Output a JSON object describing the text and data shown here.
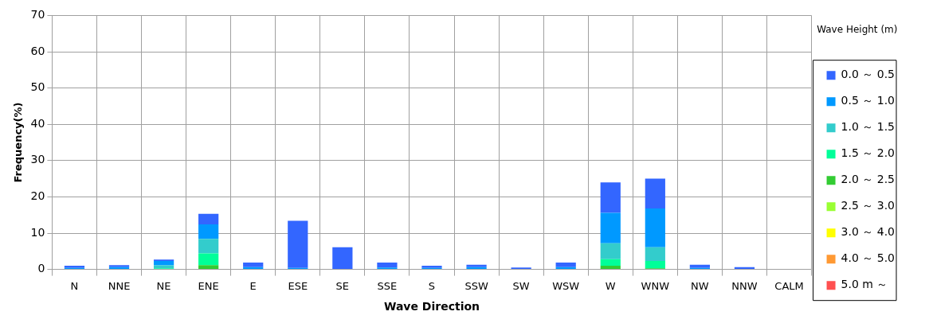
{
  "chart_data": {
    "type": "bar",
    "stacked": true,
    "xlabel": "Wave Direction",
    "ylabel": "Frequency(%)",
    "legend_title": "Wave Height (m)",
    "legend": "right",
    "grid": true,
    "categories": [
      "N",
      "NNE",
      "NE",
      "ENE",
      "E",
      "ESE",
      "SE",
      "SSE",
      "S",
      "SSW",
      "SW",
      "WSW",
      "W",
      "WNW",
      "NW",
      "NNW",
      "CALM"
    ],
    "ylim": [
      0,
      70
    ],
    "yticks": [
      0,
      10,
      20,
      30,
      40,
      50,
      60,
      70
    ],
    "series": [
      {
        "name": "2.0 ～ 2.5",
        "color": "#33cc33",
        "values": [
          0,
          0,
          0,
          1.2,
          0,
          0,
          0,
          0,
          0,
          0,
          0,
          0,
          1.0,
          0.3,
          0,
          0,
          0
        ]
      },
      {
        "name": "1.5 ～ 2.0",
        "color": "#00ff99",
        "values": [
          0,
          0,
          0.3,
          3.2,
          0,
          0,
          0,
          0,
          0,
          0,
          0,
          0,
          1.8,
          2.0,
          0,
          0,
          0
        ]
      },
      {
        "name": "1.0 ～ 1.5",
        "color": "#33cccc",
        "values": [
          0,
          null,
          0.8,
          4.0,
          0,
          0,
          0,
          0,
          0,
          0,
          0,
          0,
          4.4,
          3.8,
          0,
          0,
          0
        ]
      },
      {
        "name": "0.5 ～ 1.0",
        "color": "#0099ff",
        "values": [
          0.4,
          0.6,
          1.2,
          4.0,
          0.6,
          0.4,
          null,
          0.5,
          0.4,
          0.6,
          null,
          0.6,
          8.4,
          10.7,
          0.4,
          null,
          0
        ]
      },
      {
        "name": "0.0 ～ 0.5",
        "color": "#3366ff",
        "values": [
          0.6,
          0.6,
          0.4,
          2.9,
          1.3,
          13.0,
          6.1,
          1.4,
          0.6,
          0.7,
          0.5,
          1.3,
          8.4,
          8.2,
          0.9,
          0.6,
          0
        ]
      },
      {
        "name": "2.5 ～ 3.0",
        "color": "#99ff33",
        "values": [
          0,
          0,
          0,
          0,
          0,
          0,
          0,
          0,
          0,
          0,
          0,
          0,
          0,
          0,
          0,
          0,
          0
        ]
      },
      {
        "name": "3.0 ～ 4.0",
        "color": "#ffff00",
        "values": [
          0,
          0,
          0,
          0,
          0,
          0,
          0,
          0,
          0,
          0,
          0,
          0,
          0,
          0,
          0,
          0,
          0
        ]
      },
      {
        "name": "4.0 ～ 5.0",
        "color": "#ff9933",
        "values": [
          0,
          0,
          0,
          0,
          0,
          0,
          0,
          0,
          0,
          0,
          0,
          0,
          0,
          0,
          0,
          0,
          0
        ]
      },
      {
        "name": "5.0 m ～",
        "color": "#ff5050",
        "values": [
          0,
          0,
          0,
          0,
          0,
          0,
          0,
          0,
          0,
          0,
          0,
          0,
          0,
          0,
          0,
          0,
          0
        ]
      }
    ]
  }
}
